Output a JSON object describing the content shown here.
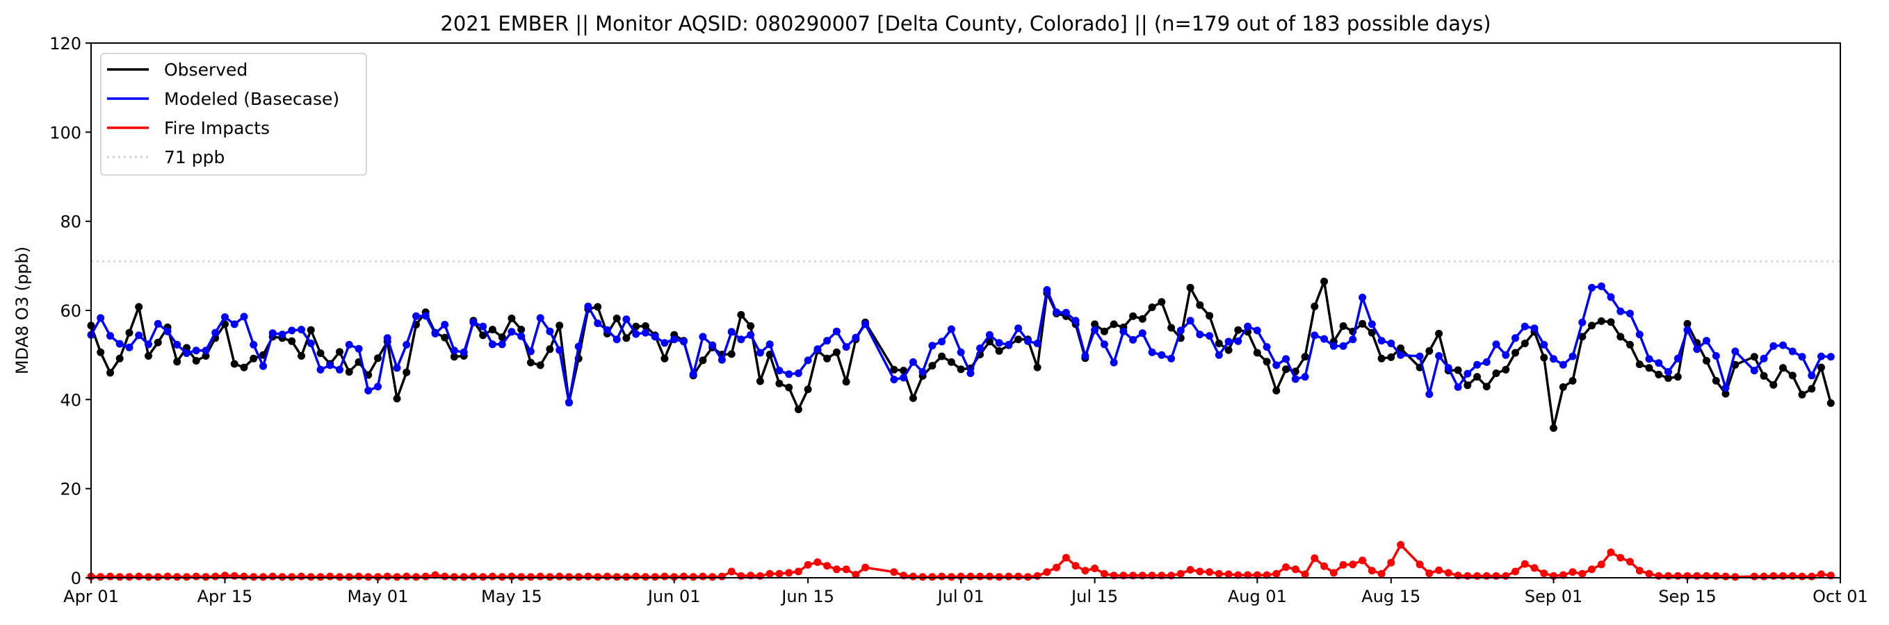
{
  "chart_data": {
    "type": "line",
    "title": "2021 EMBER || Monitor AQSID: 080290007 [Delta County, Colorado] || (n=179 out of 183 possible days)",
    "xlabel": "",
    "ylabel": "MDA8 O3 (ppb)",
    "ylim": [
      0,
      120
    ],
    "yticks": [
      0,
      20,
      40,
      60,
      80,
      100,
      120
    ],
    "x_start_date": "2021-04-01",
    "x_range_days": [
      0,
      183
    ],
    "xticks": [
      {
        "day": 0,
        "label": "Apr 01"
      },
      {
        "day": 14,
        "label": "Apr 15"
      },
      {
        "day": 30,
        "label": "May 01"
      },
      {
        "day": 44,
        "label": "May 15"
      },
      {
        "day": 61,
        "label": "Jun 01"
      },
      {
        "day": 75,
        "label": "Jun 15"
      },
      {
        "day": 91,
        "label": "Jul 01"
      },
      {
        "day": 105,
        "label": "Jul 15"
      },
      {
        "day": 122,
        "label": "Aug 01"
      },
      {
        "day": 136,
        "label": "Aug 15"
      },
      {
        "day": 153,
        "label": "Sep 01"
      },
      {
        "day": 167,
        "label": "Sep 15"
      },
      {
        "day": 183,
        "label": "Oct 01"
      }
    ],
    "grid": false,
    "legend_position": "top-left",
    "reference_line": {
      "label": "71 ppb",
      "value": 71,
      "color": "#d3d3d3",
      "style": "dotted"
    },
    "series": [
      {
        "name": "Observed",
        "color": "#000000",
        "values": [
          56.6,
          50.6,
          46,
          49.2,
          55,
          60.8,
          49.8,
          52.8,
          56.2,
          48.5,
          51.6,
          48.7,
          49.8,
          53.8,
          56.9,
          48,
          47.2,
          49.2,
          50,
          54.1,
          53.8,
          53.1,
          49.8,
          55.6,
          50.4,
          48,
          50.7,
          46.2,
          48.4,
          45.5,
          49.3,
          53,
          40.2,
          46.1,
          56.8,
          59.6,
          55,
          53.9,
          49.6,
          49.8,
          57.7,
          54.4,
          55.7,
          54,
          58.2,
          55.7,
          48.3,
          47.7,
          51.3,
          56.6,
          39.4,
          49.2,
          60.3,
          60.8,
          54.8,
          58.2,
          53.8,
          56.4,
          56.5,
          54.4,
          49.2,
          54.5,
          53.2,
          45.4,
          48.8,
          51.7,
          50.1,
          50.2,
          59,
          56.5,
          44.1,
          50.1,
          43.6,
          42.7,
          37.8,
          42.3,
          51,
          49.2,
          50.6,
          44,
          53.5,
          57.3,
          null,
          null,
          46.7,
          46.5,
          40.3,
          45.3,
          47.6,
          49.7,
          48.4,
          46.8,
          47,
          50.1,
          53,
          50.9,
          52.2,
          53.5,
          53.5,
          47.2,
          63.9,
          59.3,
          58.7,
          56.9,
          49.3,
          56.9,
          55.3,
          56.9,
          56.2,
          58.7,
          58.1,
          60.7,
          61.9,
          56.1,
          53.8,
          65.1,
          61.2,
          58.8,
          52.6,
          51.1,
          55.6,
          55.2,
          50.5,
          48.5,
          42,
          46.8,
          46.3,
          49.6,
          60.9,
          66.5,
          53,
          56.5,
          55.3,
          57,
          55,
          49.2,
          49.5,
          51.5,
          null,
          47.2,
          50.9,
          54.8,
          46.5,
          46.6,
          43.2,
          45.1,
          42.9,
          45.9,
          46.7,
          50.5,
          52.6,
          55.2,
          49.4,
          33.6,
          42.8,
          44.2,
          54.1,
          56.6,
          57.6,
          57.4,
          54.1,
          52.3,
          47.9,
          47.1,
          45.6,
          44.8,
          45.1,
          57,
          52.7,
          48.7,
          44.2,
          41.3,
          47.8,
          null,
          49.6,
          45.3,
          43.3,
          47.1,
          45.4,
          41.1,
          42.4,
          47.2,
          39.2
        ]
      },
      {
        "name": "Modeled (Basecase)",
        "color": "#0000ff",
        "values": [
          54.5,
          58.3,
          54.3,
          52.5,
          51.7,
          54.4,
          52.4,
          57,
          55.3,
          52.3,
          50.4,
          51,
          51,
          55,
          58.5,
          56.9,
          58.6,
          52.3,
          47.5,
          54.9,
          54.6,
          55.5,
          55.7,
          52.6,
          46.7,
          47.7,
          46.7,
          52.3,
          51.4,
          42,
          42.9,
          53.8,
          47.1,
          52.3,
          58.7,
          58.8,
          54.8,
          56.8,
          51,
          50.6,
          57.3,
          56.4,
          52.4,
          52.4,
          55.2,
          54.2,
          50.8,
          58.3,
          55.3,
          51.1,
          39.3,
          51.9,
          60.9,
          57.1,
          55.6,
          53.5,
          58,
          54.7,
          55,
          54.1,
          52.7,
          53.5,
          53,
          45.7,
          54.1,
          52.2,
          48.9,
          55.2,
          53.5,
          54.5,
          50.5,
          52.4,
          46.5,
          45.7,
          45.9,
          48.8,
          51.3,
          53.2,
          55.3,
          51.8,
          53.9,
          56.9,
          null,
          null,
          44.5,
          44.9,
          48.4,
          46.2,
          52.1,
          53,
          55.8,
          50.6,
          45.9,
          51.5,
          54.5,
          52.7,
          52.3,
          56,
          53.1,
          52.6,
          64.6,
          59.6,
          59.5,
          57.7,
          49.8,
          55.6,
          52.4,
          48.3,
          55.3,
          53.4,
          54.9,
          50.6,
          50,
          49.2,
          55.5,
          57.7,
          54.6,
          54.3,
          50,
          53,
          53.1,
          56.4,
          55.5,
          51.8,
          47.7,
          49.1,
          44.6,
          45.1,
          54.4,
          53.6,
          52,
          52,
          53.5,
          62.9,
          56.9,
          53.2,
          52.6,
          50,
          null,
          49.7,
          41.2,
          49.8,
          47.1,
          42.8,
          45.8,
          47.8,
          48.4,
          52.4,
          50,
          53.8,
          56.4,
          56,
          52.3,
          49.1,
          47.8,
          49.7,
          57.3,
          65.1,
          65.4,
          63,
          59.8,
          59.3,
          54.6,
          49.1,
          48.2,
          46.2,
          49.2,
          55.6,
          51.3,
          53.2,
          49.8,
          42.6,
          50.8,
          null,
          46.5,
          49.2,
          52,
          52.2,
          50.8,
          49.6,
          45.4,
          49.7,
          49.6
        ]
      },
      {
        "name": "Fire Impacts",
        "color": "#ff0000",
        "values": [
          0.3,
          0.2,
          0.3,
          0.2,
          0.2,
          0.3,
          0.2,
          0.2,
          0.3,
          0.2,
          0.2,
          0.3,
          0.2,
          0.3,
          0.5,
          0.4,
          0.3,
          0.2,
          0.2,
          0.3,
          0.2,
          0.2,
          0.3,
          0.2,
          0.2,
          0.3,
          0.2,
          0.2,
          0.3,
          0.2,
          0.2,
          0.3,
          0.2,
          0.3,
          0.2,
          0.3,
          0.6,
          0.3,
          0.2,
          0.2,
          0.3,
          0.2,
          0.3,
          0.2,
          0.3,
          0.2,
          0.2,
          0.3,
          0.2,
          0.3,
          0.2,
          0.2,
          0.3,
          0.2,
          0.3,
          0.2,
          0.2,
          0.3,
          0.2,
          0.2,
          0.3,
          0.2,
          0.3,
          0.2,
          0.3,
          0.2,
          0.3,
          1.4,
          0.4,
          0.5,
          0.4,
          0.9,
          0.9,
          1.1,
          1.4,
          2.9,
          3.5,
          2.7,
          1.9,
          1.9,
          0.7,
          2.3,
          null,
          null,
          1.3,
          0.5,
          0.3,
          0.2,
          0.2,
          0.3,
          0.2,
          0.3,
          0.3,
          0.3,
          0.3,
          0.2,
          0.3,
          0.3,
          0.2,
          0.4,
          1.3,
          2.3,
          4.5,
          2.7,
          1.6,
          2.1,
          0.9,
          0.5,
          0.5,
          0.5,
          0.5,
          0.5,
          0.5,
          0.5,
          0.9,
          1.8,
          1.4,
          1.3,
          0.9,
          0.8,
          0.6,
          0.6,
          0.6,
          0.6,
          0.9,
          2.4,
          1.9,
          0.8,
          4.4,
          2.6,
          1.1,
          2.9,
          3,
          3.9,
          1.6,
          0.9,
          3.4,
          7.4,
          null,
          3,
          1,
          1.7,
          1.1,
          0.5,
          0.4,
          0.4,
          0.4,
          0.4,
          0.4,
          1.4,
          3.1,
          2.2,
          1,
          0.4,
          0.6,
          1.3,
          0.9,
          1.9,
          3,
          5.7,
          4.5,
          3.6,
          1.6,
          0.9,
          0.4,
          0.4,
          0.4,
          0.4,
          0.4,
          0.4,
          0.4,
          0.3,
          0.2,
          null,
          0.3,
          0.3,
          0.4,
          0.4,
          0.4,
          0.3,
          0.3,
          0.8,
          0.5
        ]
      }
    ]
  }
}
